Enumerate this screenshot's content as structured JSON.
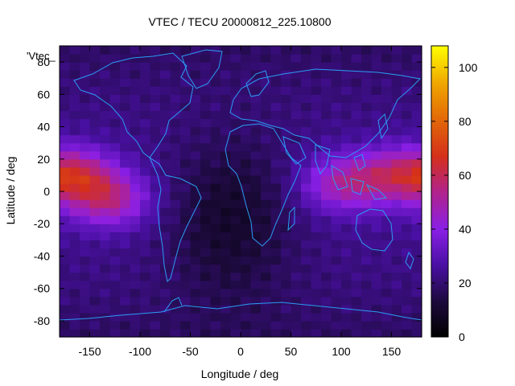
{
  "chart_data": {
    "type": "heatmap",
    "title": "VTEC / TECU 20000812_225.10800",
    "xlabel": "Longitude / deg",
    "ylabel": "Latitude / deg",
    "key_label": "'Vtec_",
    "xlim": [
      -180,
      180
    ],
    "ylim": [
      -90,
      90
    ],
    "x_ticks": [
      -150,
      -100,
      -50,
      0,
      50,
      100,
      150
    ],
    "y_ticks": [
      -80,
      -60,
      -40,
      -20,
      0,
      20,
      40,
      60,
      80
    ],
    "colorbar": {
      "range": [
        0,
        108
      ],
      "ticks": [
        0,
        20,
        40,
        60,
        80,
        100
      ],
      "palette": "black-purple-red-yellow"
    },
    "overlay": "coastlines",
    "description_of_field": {
      "grid_step_deg": [
        10,
        5
      ],
      "peaks": [
        {
          "lon": -165,
          "lat": 10,
          "value": 83
        },
        {
          "lon": -130,
          "lat": -5,
          "value": 74
        },
        {
          "lon": 100,
          "lat": 5,
          "value": 70
        },
        {
          "lon": 150,
          "lat": 10,
          "value": 68
        }
      ],
      "background_tecu": 24
    }
  }
}
